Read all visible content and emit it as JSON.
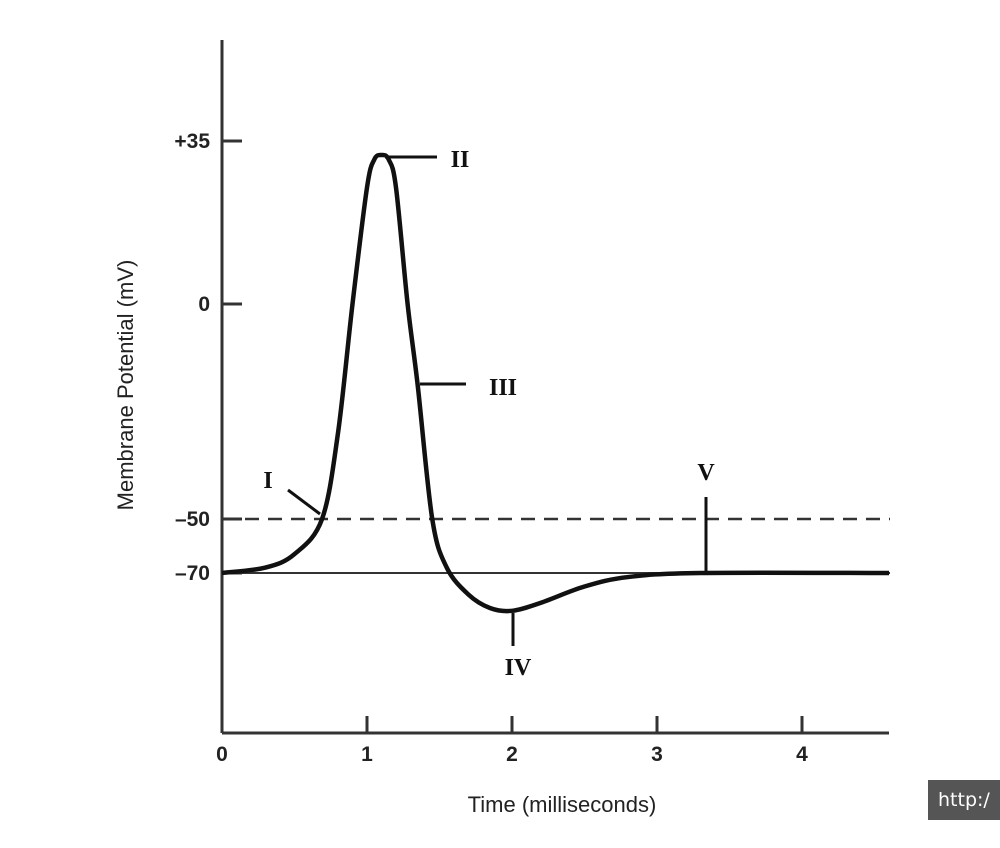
{
  "chart_data": {
    "type": "line",
    "xlabel": "Time (milliseconds)",
    "ylabel": "Membrane Potential (mV)",
    "x_ticks": [
      "0",
      "1",
      "2",
      "3",
      "4"
    ],
    "y_ticks": [
      "+35",
      "0",
      "–50",
      "–70"
    ],
    "y_tick_values": [
      35,
      0,
      -50,
      -70
    ],
    "xlim": [
      0,
      4.6
    ],
    "threshold_mV": -50,
    "resting_mV": -70,
    "series": [
      {
        "x": [
          0,
          0.3,
          0.5,
          0.69,
          0.8,
          0.9,
          1.0,
          1.05,
          1.1,
          1.15,
          1.2,
          1.28,
          1.35,
          1.45,
          1.55,
          1.7,
          1.85,
          2.0,
          2.2,
          2.5,
          2.8,
          3.3,
          4.6
        ],
        "y": [
          -70,
          -68,
          -63,
          -50,
          -30,
          0,
          25,
          31,
          32,
          31,
          25,
          0,
          -19,
          -50,
          -68,
          -78,
          -83,
          -84,
          -81,
          -75,
          -71.5,
          -70,
          -70
        ]
      }
    ],
    "annotations": [
      {
        "label": "I",
        "x": 0.69,
        "y": -50
      },
      {
        "label": "II",
        "x": 1.1,
        "y": 32
      },
      {
        "label": "III",
        "x": 1.35,
        "y": -19
      },
      {
        "label": "IV",
        "x": 2.0,
        "y": -84
      },
      {
        "label": "V",
        "x": 3.33,
        "y": -70
      }
    ],
    "grid": false
  },
  "tooltip": {
    "text": "http:/"
  }
}
